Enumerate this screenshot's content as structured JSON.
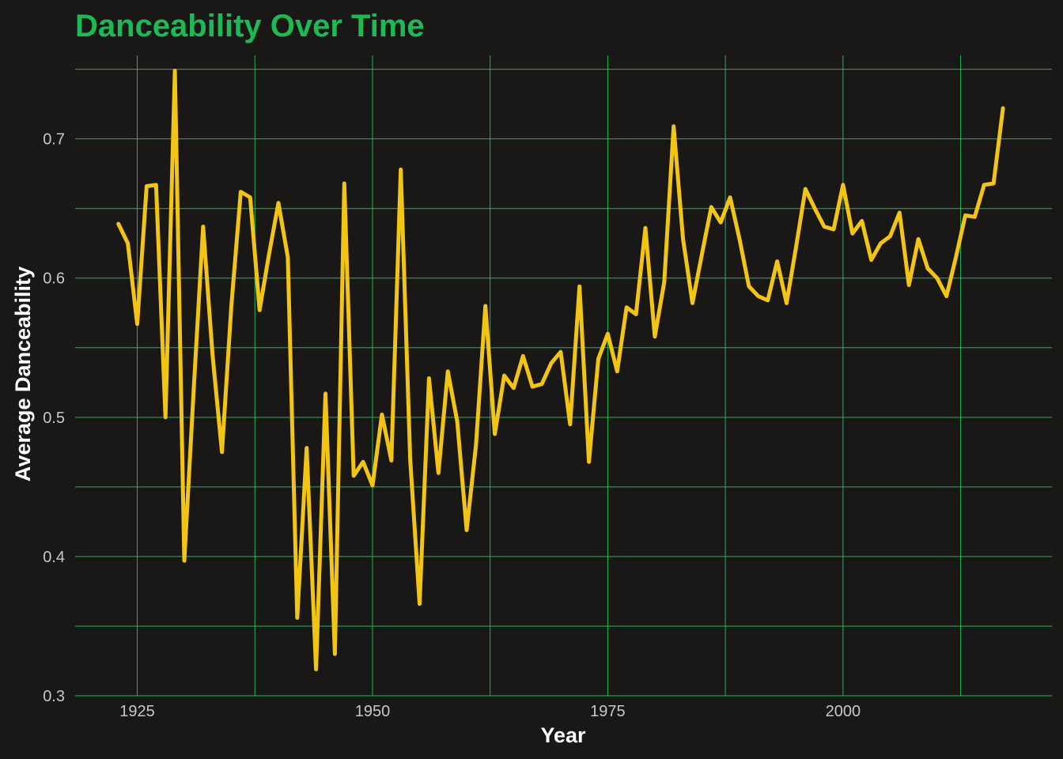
{
  "colors": {
    "background": "#1a1717",
    "title": "#1db954",
    "grid": "#1db954",
    "line": "#f2c414",
    "tick_text": "#c8c8c8",
    "axis_title": "#ffffff"
  },
  "chart_data": {
    "type": "line",
    "title": "Danceability Over Time",
    "xlabel": "Year",
    "ylabel": "Average Danceability",
    "xlim": [
      1918.4,
      2022.2
    ],
    "ylim": [
      0.3,
      0.76
    ],
    "x_ticks": [
      1925,
      1950,
      1975,
      2000
    ],
    "x_minor_ticks": [
      1937.5,
      1962.5,
      1987.5,
      2012.5
    ],
    "y_ticks": [
      0.3,
      0.4,
      0.5,
      0.6,
      0.7
    ],
    "y_minor_ticks": [
      0.35,
      0.45,
      0.55,
      0.65,
      0.75
    ],
    "x_tick_labels": [
      "1925",
      "1950",
      "1975",
      "2000"
    ],
    "y_tick_labels": [
      "0.3",
      "0.4",
      "0.5",
      "0.6",
      "0.7"
    ],
    "grid": true,
    "legend": "none",
    "series": [
      {
        "x": [
          1923,
          1924,
          1925,
          1926,
          1927,
          1928,
          1929,
          1930,
          1931,
          1932,
          1933,
          1934,
          1935,
          1936,
          1937,
          1938,
          1939,
          1940,
          1941,
          1942,
          1943,
          1944,
          1945,
          1946,
          1947,
          1948,
          1949,
          1950,
          1951,
          1952,
          1953,
          1954,
          1955,
          1956,
          1957,
          1958,
          1959,
          1960,
          1961,
          1962,
          1963,
          1964,
          1965,
          1966,
          1967,
          1968,
          1969,
          1970,
          1971,
          1972,
          1973,
          1974,
          1975,
          1976,
          1977,
          1978,
          1979,
          1980,
          1981,
          1982,
          1983,
          1984,
          1985,
          1986,
          1987,
          1988,
          1989,
          1990,
          1991,
          1992,
          1993,
          1994,
          1995,
          1996,
          1997,
          1998,
          1999,
          2000,
          2001,
          2002,
          2003,
          2004,
          2005,
          2006,
          2007,
          2008,
          2009,
          2010,
          2011,
          2012,
          2013,
          2014,
          2015,
          2016,
          2017
        ],
        "values": [
          0.639,
          0.625,
          0.567,
          0.666,
          0.667,
          0.5,
          0.749,
          0.397,
          0.52,
          0.637,
          0.545,
          0.475,
          0.58,
          0.662,
          0.658,
          0.577,
          0.617,
          0.654,
          0.615,
          0.356,
          0.478,
          0.319,
          0.517,
          0.33,
          0.668,
          0.458,
          0.468,
          0.451,
          0.502,
          0.469,
          0.678,
          0.47,
          0.366,
          0.528,
          0.46,
          0.533,
          0.497,
          0.419,
          0.48,
          0.58,
          0.488,
          0.53,
          0.521,
          0.544,
          0.522,
          0.524,
          0.539,
          0.547,
          0.495,
          0.594,
          0.468,
          0.542,
          0.56,
          0.533,
          0.579,
          0.574,
          0.636,
          0.558,
          0.597,
          0.709,
          0.628,
          0.582,
          0.617,
          0.651,
          0.64,
          0.658,
          0.628,
          0.594,
          0.587,
          0.584,
          0.612,
          0.582,
          0.622,
          0.664,
          0.65,
          0.637,
          0.635,
          0.667,
          0.632,
          0.641,
          0.613,
          0.625,
          0.63,
          0.647,
          0.595,
          0.628,
          0.607,
          0.6,
          0.587,
          0.615,
          0.645,
          0.644,
          0.667,
          0.668,
          0.722
        ]
      }
    ]
  }
}
